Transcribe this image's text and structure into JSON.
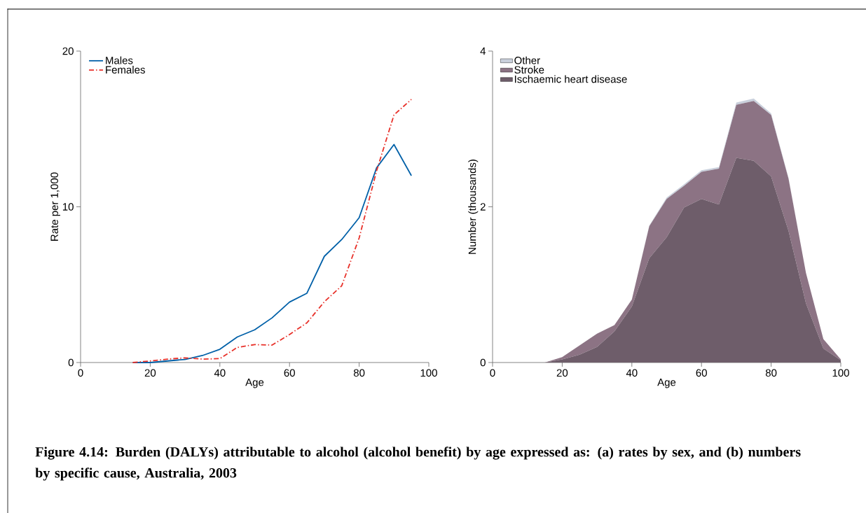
{
  "chart_data": [
    {
      "type": "line",
      "xlabel": "Age",
      "ylabel": "Rate per 1,000",
      "xlim": [
        0,
        100
      ],
      "ylim": [
        0,
        20
      ],
      "xticks": [
        0,
        20,
        40,
        60,
        80,
        100
      ],
      "yticks": [
        0,
        10,
        20
      ],
      "grid": false,
      "legend": "top left",
      "x": [
        15,
        20,
        25,
        30,
        35,
        40,
        45,
        50,
        55,
        60,
        65,
        70,
        75,
        80,
        85,
        90,
        95
      ],
      "series": [
        {
          "name": "Males",
          "color": "#0060a8",
          "line_style": "solid",
          "values": [
            0,
            0.0,
            0.1,
            0.2,
            0.45,
            0.85,
            1.64,
            2.1,
            2.87,
            3.88,
            4.45,
            6.82,
            7.9,
            9.3,
            12.5,
            14.0,
            12.0
          ]
        },
        {
          "name": "Females",
          "color": "#e8312a",
          "line_style": "dashdot",
          "values": [
            0,
            0.1,
            0.22,
            0.3,
            0.22,
            0.25,
            0.97,
            1.15,
            1.12,
            1.8,
            2.55,
            3.9,
            4.93,
            8.0,
            12.3,
            15.9,
            16.9
          ]
        }
      ],
      "annotations": [
        "Figure 4.14: Burden (DALYs) attributable to alcohol (alcohol benefit) by age expressed as: (a) rates by sex, and (b) numbers by specific cause, Australia, 2003"
      ]
    },
    {
      "type": "area",
      "stacked": true,
      "xlabel": "Age",
      "ylabel": "Number (thousands)",
      "xlim": [
        0,
        100
      ],
      "ylim": [
        0,
        4
      ],
      "xticks": [
        0,
        20,
        40,
        60,
        80,
        100
      ],
      "yticks": [
        0,
        2,
        4
      ],
      "grid": false,
      "legend": "top left",
      "x": [
        15,
        20,
        25,
        30,
        35,
        40,
        45,
        50,
        55,
        60,
        65,
        70,
        75,
        80,
        85,
        90,
        95,
        100
      ],
      "series": [
        {
          "name": "Ischaemic heart disease",
          "color": "#6e5d6a",
          "values": [
            0,
            0.04,
            0.1,
            0.2,
            0.4,
            0.72,
            1.34,
            1.61,
            1.99,
            2.1,
            2.03,
            2.63,
            2.59,
            2.39,
            1.69,
            0.76,
            0.18,
            0.03
          ]
        },
        {
          "name": "Stroke",
          "color": "#8c7384",
          "values": [
            0,
            0.03,
            0.12,
            0.17,
            0.08,
            0.09,
            0.41,
            0.49,
            0.28,
            0.35,
            0.46,
            0.68,
            0.77,
            0.79,
            0.67,
            0.39,
            0.12,
            0.01
          ]
        },
        {
          "name": "Other",
          "color": "#c9d0dc",
          "values": [
            0,
            0,
            0,
            0,
            0,
            0,
            0.01,
            0.02,
            0.02,
            0.02,
            0.02,
            0.03,
            0.03,
            0.02,
            0.01,
            0,
            0,
            0
          ]
        }
      ]
    }
  ]
}
